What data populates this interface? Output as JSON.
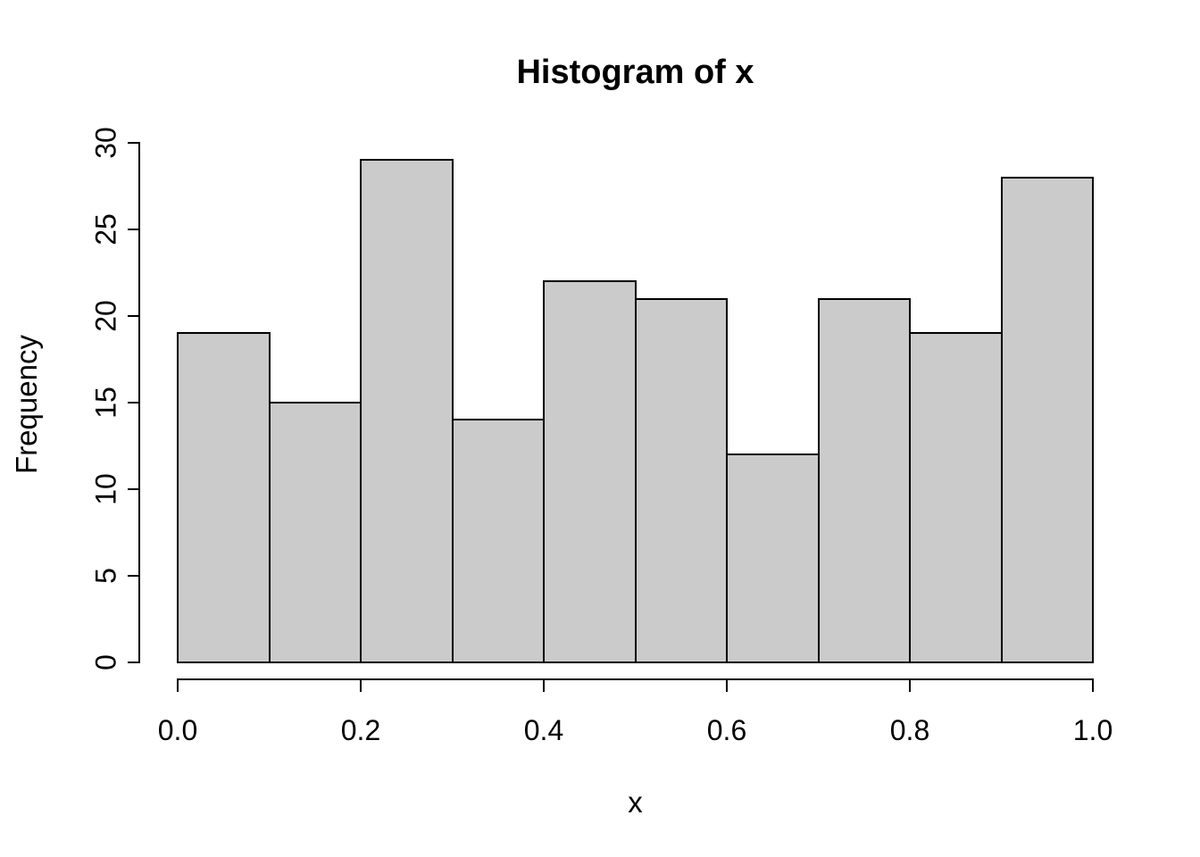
{
  "chart_data": {
    "type": "bar",
    "subtype": "histogram",
    "title": "Histogram of x",
    "xlabel": "x",
    "ylabel": "Frequency",
    "bin_edges": [
      0,
      0.1,
      0.2,
      0.3,
      0.4,
      0.5,
      0.6,
      0.7,
      0.8,
      0.9,
      1.0
    ],
    "categories": [
      "0.0-0.1",
      "0.1-0.2",
      "0.2-0.3",
      "0.3-0.4",
      "0.4-0.5",
      "0.5-0.6",
      "0.6-0.7",
      "0.7-0.8",
      "0.8-0.9",
      "0.9-1.0"
    ],
    "values": [
      19,
      15,
      29,
      14,
      22,
      21,
      12,
      21,
      19,
      28
    ],
    "xlim": [
      0,
      1
    ],
    "ylim": [
      0,
      30
    ],
    "x_ticks": {
      "values": [
        0,
        0.2,
        0.4,
        0.6,
        0.8,
        1.0
      ],
      "labels": [
        "0.0",
        "0.2",
        "0.4",
        "0.6",
        "0.8",
        "1.0"
      ]
    },
    "y_ticks": {
      "values": [
        0,
        5,
        10,
        15,
        20,
        25,
        30
      ],
      "labels": [
        "0",
        "5",
        "10",
        "15",
        "20",
        "25",
        "30"
      ]
    },
    "grid": false,
    "legend": false,
    "colors": {
      "bar_fill": "#CBCBCB",
      "bar_border": "#000000",
      "axis": "#000000",
      "text": "#000000",
      "background": "#FFFFFF"
    }
  }
}
